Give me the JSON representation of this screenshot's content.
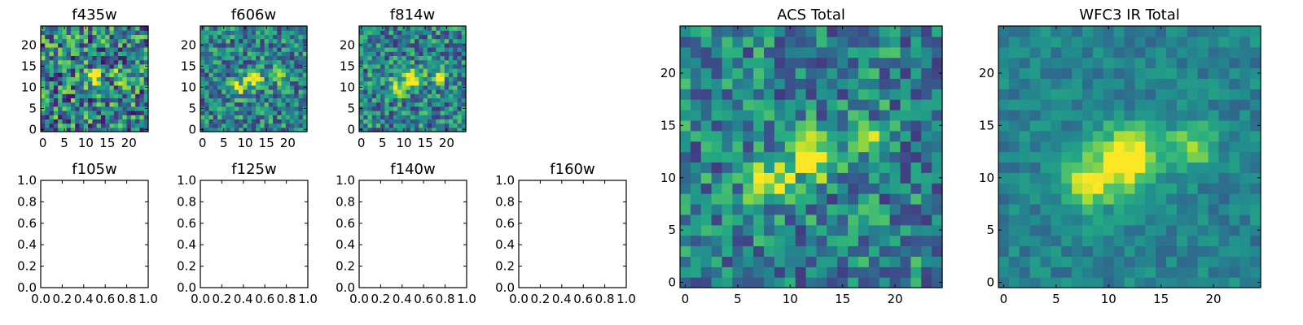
{
  "chart_data": [
    {
      "type": "heatmap",
      "title": "f435w",
      "xlim": [
        -0.5,
        24.5
      ],
      "ylim": [
        -0.5,
        24.5
      ],
      "xticks": [
        0,
        5,
        10,
        15,
        20
      ],
      "yticks": [
        0,
        5,
        10,
        15,
        20
      ],
      "tick_labels_x": [
        "0",
        "5",
        "10",
        "15",
        "20"
      ],
      "tick_labels_y": [
        "0",
        "5",
        "10",
        "15",
        "20"
      ],
      "grid": false,
      "colormap": "viridis",
      "noise": 0.4,
      "seed": 11,
      "sources": [
        {
          "x": 12,
          "y": 12.5,
          "sigma": 1.3,
          "amp": 0.55
        },
        {
          "x": 18,
          "y": 13,
          "sigma": 1.2,
          "amp": 0.35
        }
      ]
    },
    {
      "type": "heatmap",
      "title": "f606w",
      "xlim": [
        -0.5,
        24.5
      ],
      "ylim": [
        -0.5,
        24.5
      ],
      "xticks": [
        0,
        5,
        10,
        15,
        20
      ],
      "yticks": [
        0,
        5,
        10,
        15,
        20
      ],
      "tick_labels_x": [
        "0",
        "5",
        "10",
        "15",
        "20"
      ],
      "tick_labels_y": [
        "0",
        "5",
        "10",
        "15",
        "20"
      ],
      "grid": false,
      "colormap": "viridis",
      "noise": 0.3,
      "seed": 23,
      "sources": [
        {
          "x": 12,
          "y": 12,
          "sigma": 1.4,
          "amp": 0.7
        },
        {
          "x": 8,
          "y": 10,
          "sigma": 1.3,
          "amp": 0.5
        },
        {
          "x": 18,
          "y": 13,
          "sigma": 1.2,
          "amp": 0.45
        }
      ]
    },
    {
      "type": "heatmap",
      "title": "f814w",
      "xlim": [
        -0.5,
        24.5
      ],
      "ylim": [
        -0.5,
        24.5
      ],
      "xticks": [
        0,
        5,
        10,
        15,
        20
      ],
      "yticks": [
        0,
        5,
        10,
        15,
        20
      ],
      "tick_labels_x": [
        "0",
        "5",
        "10",
        "15",
        "20"
      ],
      "tick_labels_y": [
        "0",
        "5",
        "10",
        "15",
        "20"
      ],
      "grid": false,
      "colormap": "viridis",
      "noise": 0.3,
      "seed": 37,
      "sources": [
        {
          "x": 12,
          "y": 12,
          "sigma": 1.5,
          "amp": 0.7
        },
        {
          "x": 8,
          "y": 10,
          "sigma": 1.3,
          "amp": 0.5
        },
        {
          "x": 18,
          "y": 12.5,
          "sigma": 1.2,
          "amp": 0.45
        }
      ]
    },
    {
      "type": "scatter",
      "title": "f105w",
      "xlim": [
        0,
        1
      ],
      "ylim": [
        0,
        1
      ],
      "xticks": [
        0,
        0.2,
        0.4,
        0.6,
        0.8,
        1.0
      ],
      "yticks": [
        0,
        0.2,
        0.4,
        0.6,
        0.8,
        1.0
      ],
      "tick_labels_x": [
        "0.0",
        "0.2",
        "0.4",
        "0.6",
        "0.8",
        "1.0"
      ],
      "tick_labels_y": [
        "0.0",
        "0.2",
        "0.4",
        "0.6",
        "0.8",
        "1.0"
      ],
      "grid": false,
      "empty": true
    },
    {
      "type": "scatter",
      "title": "f125w",
      "xlim": [
        0,
        1
      ],
      "ylim": [
        0,
        1
      ],
      "xticks": [
        0,
        0.2,
        0.4,
        0.6,
        0.8,
        1.0
      ],
      "yticks": [
        0,
        0.2,
        0.4,
        0.6,
        0.8,
        1.0
      ],
      "tick_labels_x": [
        "0.0",
        "0.2",
        "0.4",
        "0.6",
        "0.8",
        "1.0"
      ],
      "tick_labels_y": [
        "0.0",
        "0.2",
        "0.4",
        "0.6",
        "0.8",
        "1.0"
      ],
      "grid": false,
      "empty": true
    },
    {
      "type": "scatter",
      "title": "f140w",
      "xlim": [
        0,
        1
      ],
      "ylim": [
        0,
        1
      ],
      "xticks": [
        0,
        0.2,
        0.4,
        0.6,
        0.8,
        1.0
      ],
      "yticks": [
        0,
        0.2,
        0.4,
        0.6,
        0.8,
        1.0
      ],
      "tick_labels_x": [
        "0.0",
        "0.2",
        "0.4",
        "0.6",
        "0.8",
        "1.0"
      ],
      "tick_labels_y": [
        "0.0",
        "0.2",
        "0.4",
        "0.6",
        "0.8",
        "1.0"
      ],
      "grid": false,
      "empty": true
    },
    {
      "type": "scatter",
      "title": "f160w",
      "xlim": [
        0,
        1
      ],
      "ylim": [
        0,
        1
      ],
      "xticks": [
        0,
        0.2,
        0.4,
        0.6,
        0.8,
        1.0
      ],
      "yticks": [
        0,
        0.2,
        0.4,
        0.6,
        0.8,
        1.0
      ],
      "tick_labels_x": [
        "0.0",
        "0.2",
        "0.4",
        "0.6",
        "0.8",
        "1.0"
      ],
      "tick_labels_y": [
        "0.0",
        "0.2",
        "0.4",
        "0.6",
        "0.8",
        "1.0"
      ],
      "grid": false,
      "empty": true
    },
    {
      "type": "heatmap",
      "title": "ACS Total",
      "xlim": [
        -0.5,
        24.5
      ],
      "ylim": [
        -0.5,
        24.5
      ],
      "xticks": [
        0,
        5,
        10,
        15,
        20
      ],
      "yticks": [
        0,
        5,
        10,
        15,
        20
      ],
      "tick_labels_x": [
        "0",
        "5",
        "10",
        "15",
        "20"
      ],
      "tick_labels_y": [
        "0",
        "5",
        "10",
        "15",
        "20"
      ],
      "grid": false,
      "colormap": "viridis",
      "noise": 0.28,
      "seed": 53,
      "sources": [
        {
          "x": 12,
          "y": 12,
          "sigma": 1.4,
          "amp": 0.75
        },
        {
          "x": 8,
          "y": 9.5,
          "sigma": 1.3,
          "amp": 0.6
        },
        {
          "x": 18,
          "y": 13.5,
          "sigma": 1.1,
          "amp": 0.5
        }
      ]
    },
    {
      "type": "heatmap",
      "title": "WFC3 IR Total",
      "xlim": [
        -0.5,
        24.5
      ],
      "ylim": [
        -0.5,
        24.5
      ],
      "xticks": [
        0,
        5,
        10,
        15,
        20
      ],
      "yticks": [
        0,
        5,
        10,
        15,
        20
      ],
      "tick_labels_x": [
        "0",
        "5",
        "10",
        "15",
        "20"
      ],
      "tick_labels_y": [
        "0",
        "5",
        "10",
        "15",
        "20"
      ],
      "grid": false,
      "colormap": "viridis",
      "noise": 0.12,
      "seed": 71,
      "sources": [
        {
          "x": 12,
          "y": 12,
          "sigma": 2.0,
          "amp": 0.65
        },
        {
          "x": 8,
          "y": 9.5,
          "sigma": 1.8,
          "amp": 0.5
        },
        {
          "x": 18,
          "y": 13,
          "sigma": 1.5,
          "amp": 0.4
        }
      ]
    }
  ]
}
